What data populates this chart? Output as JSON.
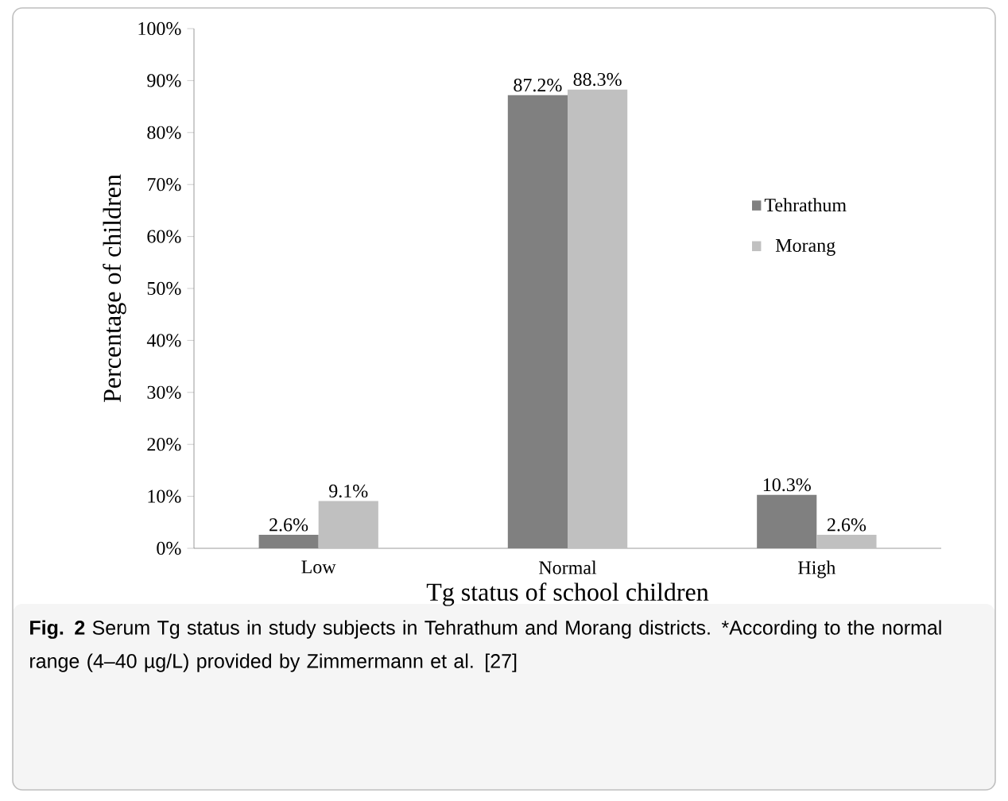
{
  "chart_data": {
    "type": "bar",
    "xlabel": "Tg status of school children",
    "ylabel": "Percentage of children",
    "categories": [
      "Low",
      "Normal",
      "High"
    ],
    "series": [
      {
        "name": "Tehrathum",
        "color": "#808080",
        "values": [
          2.6,
          87.2,
          10.3
        ],
        "value_labels": [
          "2.6%",
          "87.2%",
          "10.3%"
        ]
      },
      {
        "name": "Morang",
        "color": "#c0c0c0",
        "values": [
          9.1,
          88.3,
          2.6
        ],
        "value_labels": [
          "9.1%",
          "88.3%",
          "2.6%"
        ]
      }
    ],
    "ylim": [
      0,
      100
    ],
    "yticks": [
      {
        "value": 0,
        "label": "0%"
      },
      {
        "value": 10,
        "label": "10%"
      },
      {
        "value": 20,
        "label": "20%"
      },
      {
        "value": 30,
        "label": "30%"
      },
      {
        "value": 40,
        "label": "40%"
      },
      {
        "value": 50,
        "label": "50%"
      },
      {
        "value": 60,
        "label": "60%"
      },
      {
        "value": 70,
        "label": "70%"
      },
      {
        "value": 80,
        "label": "80%"
      },
      {
        "value": 90,
        "label": "90%"
      },
      {
        "value": 100,
        "label": "100%"
      }
    ],
    "legend": "right",
    "grid": false,
    "annotations": [
      "**Fig. 2** Serum Tg status in study subjects in Tehrathum and Morang districts. *According to the normal range (4–40 µg/L) provided by Zimmermann et al. [27]"
    ]
  }
}
